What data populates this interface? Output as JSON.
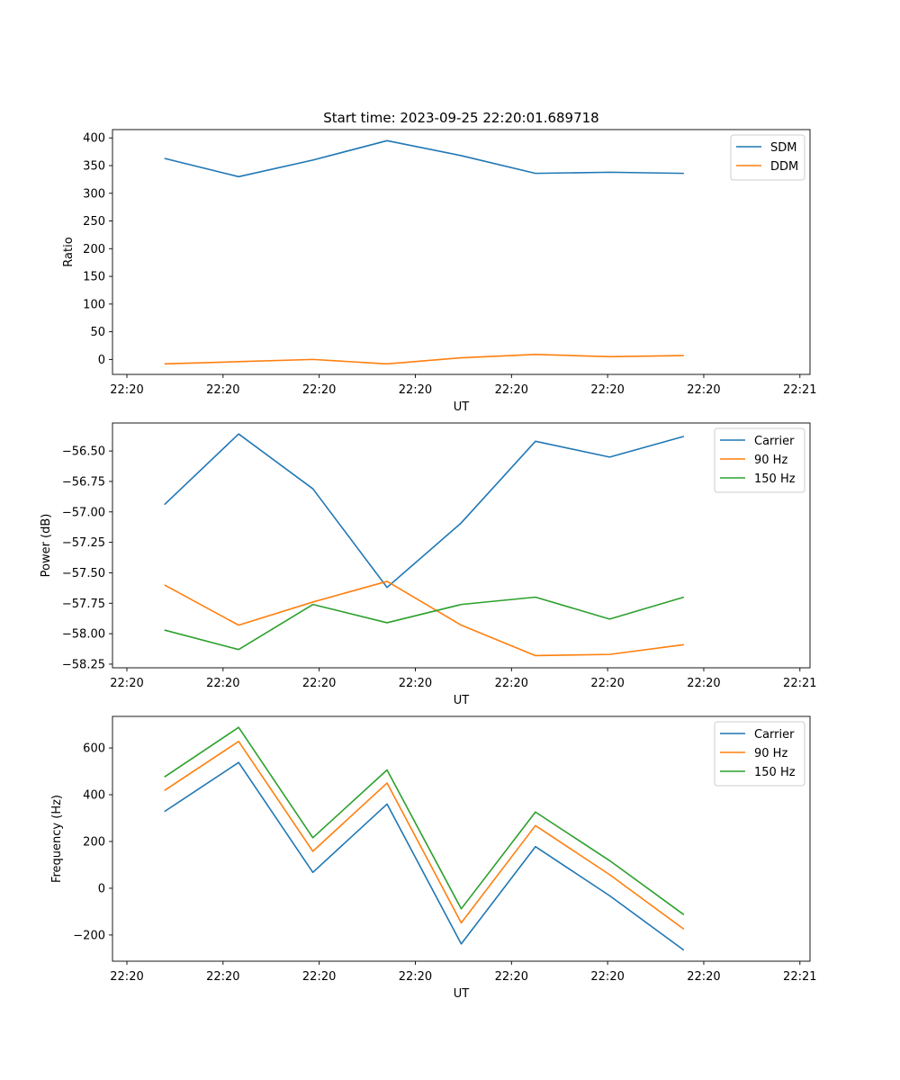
{
  "figure_title": "Start time: 2023-09-25 22:20:01.689718",
  "colors": {
    "blue": "#1f77b4",
    "orange": "#ff7f0e",
    "green": "#2ca02c"
  },
  "chart_data": [
    {
      "type": "line",
      "title": "Start time: 2023-09-25 22:20:01.689718",
      "xlabel": "UT",
      "ylabel": "Ratio",
      "x_ticks": [
        "22:20",
        "22:20",
        "22:20",
        "22:20",
        "22:20",
        "22:20",
        "22:20",
        "22:21"
      ],
      "x_index": [
        1,
        2,
        3,
        4,
        5,
        6,
        7,
        8
      ],
      "xlim": [
        -0.7,
        8.7
      ],
      "ylim": [
        -27,
        415
      ],
      "y_ticks": [
        0,
        50,
        100,
        150,
        200,
        250,
        300,
        350,
        400
      ],
      "legend": "top-right",
      "series": [
        {
          "name": "SDM",
          "color": "#1f77b4",
          "values": [
            363,
            330,
            360,
            395,
            368,
            336,
            338,
            336
          ]
        },
        {
          "name": "DDM",
          "color": "#ff7f0e",
          "values": [
            -8,
            -4,
            0,
            -8,
            3,
            9,
            5,
            7
          ]
        }
      ]
    },
    {
      "type": "line",
      "title": "",
      "xlabel": "UT",
      "ylabel": "Power (dB)",
      "x_ticks": [
        "22:20",
        "22:20",
        "22:20",
        "22:20",
        "22:20",
        "22:20",
        "22:20",
        "22:21"
      ],
      "x_index": [
        1,
        2,
        3,
        4,
        5,
        6,
        7,
        8
      ],
      "xlim": [
        -0.7,
        8.7
      ],
      "ylim": [
        -58.28,
        -56.27
      ],
      "y_ticks": [
        -58.25,
        -58.0,
        -57.75,
        -57.5,
        -57.25,
        -57.0,
        -56.75,
        -56.5
      ],
      "y_tick_labels": [
        "−58.25",
        "−58.00",
        "−57.75",
        "−57.50",
        "−57.25",
        "−57.00",
        "−56.75",
        "−56.50"
      ],
      "legend": "top-right",
      "series": [
        {
          "name": "Carrier",
          "color": "#1f77b4",
          "values": [
            -56.94,
            -56.36,
            -56.81,
            -57.62,
            -57.09,
            -56.42,
            -56.55,
            -56.38
          ]
        },
        {
          "name": "90 Hz",
          "color": "#ff7f0e",
          "values": [
            -57.6,
            -57.93,
            -57.74,
            -57.57,
            -57.93,
            -58.18,
            -58.17,
            -58.09
          ]
        },
        {
          "name": "150 Hz",
          "color": "#2ca02c",
          "values": [
            -57.97,
            -58.13,
            -57.76,
            -57.91,
            -57.76,
            -57.7,
            -57.88,
            -57.7
          ]
        }
      ]
    },
    {
      "type": "line",
      "title": "",
      "xlabel": "UT",
      "ylabel": "Frequency (Hz)",
      "x_ticks": [
        "22:20",
        "22:20",
        "22:20",
        "22:20",
        "22:20",
        "22:20",
        "22:20",
        "22:21"
      ],
      "x_index": [
        1,
        2,
        3,
        4,
        5,
        6,
        7,
        8
      ],
      "xlim": [
        -0.7,
        8.7
      ],
      "ylim": [
        -312,
        735
      ],
      "y_ticks": [
        -200,
        0,
        200,
        400,
        600
      ],
      "y_tick_labels": [
        "−200",
        "0",
        "200",
        "400",
        "600"
      ],
      "legend": "top-right",
      "series": [
        {
          "name": "Carrier",
          "color": "#1f77b4",
          "values": [
            328,
            538,
            68,
            360,
            -238,
            178,
            -32,
            -265
          ]
        },
        {
          "name": "90 Hz",
          "color": "#ff7f0e",
          "values": [
            418,
            628,
            158,
            450,
            -148,
            268,
            58,
            -175
          ]
        },
        {
          "name": "150 Hz",
          "color": "#2ca02c",
          "values": [
            476,
            688,
            216,
            506,
            -88,
            326,
            118,
            -113
          ]
        }
      ]
    }
  ]
}
